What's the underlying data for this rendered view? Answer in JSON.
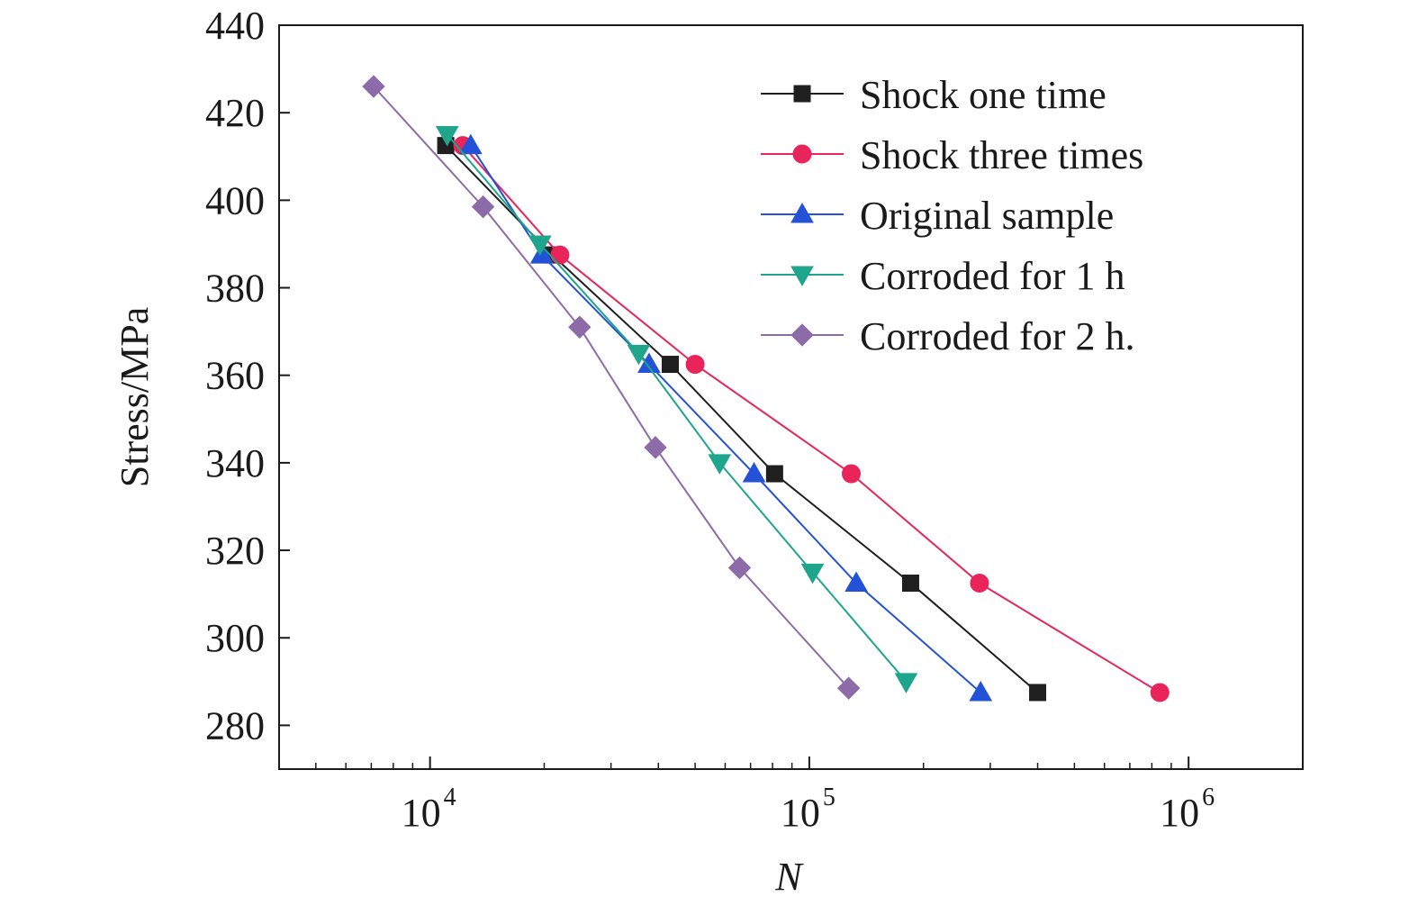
{
  "chart_data": {
    "type": "line",
    "xlabel": "N",
    "ylabel": "Stress/MPa",
    "x_scale": "log",
    "xlim": [
      4000,
      2000000
    ],
    "ylim": [
      270,
      440
    ],
    "x_ticks": [
      {
        "value": 10000,
        "base": "10",
        "exp": "4"
      },
      {
        "value": 100000,
        "base": "10",
        "exp": "5"
      },
      {
        "value": 1000000,
        "base": "10",
        "exp": "6"
      }
    ],
    "y_ticks": [
      "280",
      "300",
      "320",
      "340",
      "360",
      "380",
      "400",
      "420",
      "440"
    ],
    "legend_position": "top-right",
    "grid": false,
    "series": [
      {
        "name": "Shock one time",
        "color": "#1f1f1f",
        "marker": "square",
        "x": [
          11000,
          21000,
          43000,
          81000,
          185000,
          400000
        ],
        "y": [
          412.5,
          387.5,
          362.5,
          337.5,
          312.5,
          287.5
        ]
      },
      {
        "name": "Shock three times",
        "color": "#e8245a",
        "marker": "circle",
        "x": [
          12200,
          22000,
          50000,
          129000,
          281000,
          840000
        ],
        "y": [
          412.5,
          387.5,
          362.5,
          337.5,
          312.5,
          287.5
        ]
      },
      {
        "name": "Original sample",
        "color": "#2452d6",
        "marker": "triangle-up",
        "x": [
          12800,
          19700,
          37800,
          71500,
          133000,
          283000
        ],
        "y": [
          412.5,
          387.5,
          362.5,
          337.5,
          312.5,
          287.5
        ]
      },
      {
        "name": "Corroded for 1 h",
        "color": "#1ea58c",
        "marker": "triangle-down",
        "x": [
          11100,
          19500,
          35500,
          58000,
          102000,
          180000
        ],
        "y": [
          415.0,
          390.0,
          365.0,
          340.0,
          315.0,
          290.0
        ]
      },
      {
        "name": "Corroded for 2 h.",
        "color": "#8c6ba8",
        "marker": "diamond",
        "x": [
          7100,
          13800,
          24800,
          39300,
          65500,
          127000
        ],
        "y": [
          426.0,
          398.5,
          371.0,
          343.5,
          316.0,
          288.5
        ]
      }
    ]
  }
}
